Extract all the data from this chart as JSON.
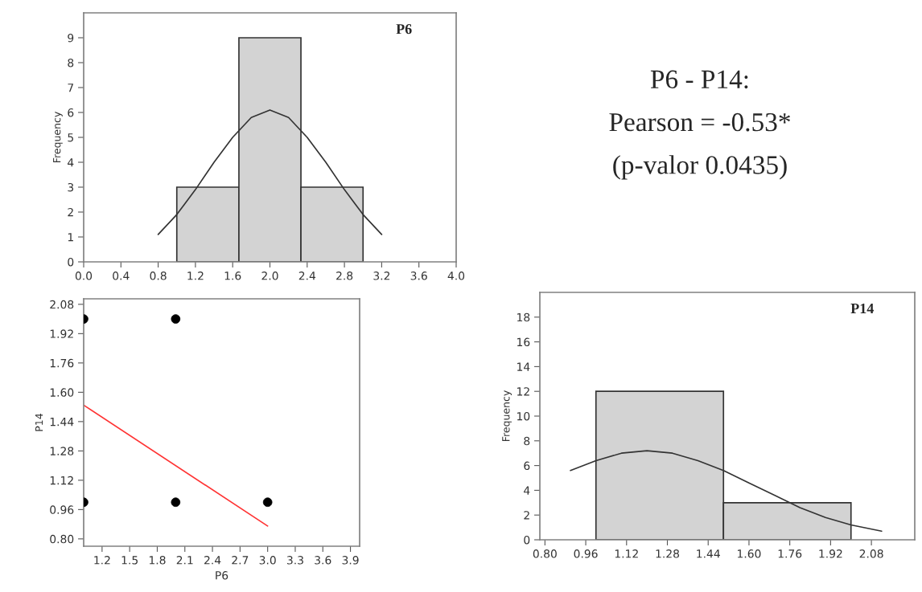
{
  "chart_data": [
    {
      "type": "histogram",
      "title": "P6",
      "ylabel": "Frequency",
      "bins": [
        1.0,
        1.667,
        2.333,
        3.0
      ],
      "values": [
        3,
        9,
        3
      ],
      "color": "#d3d3d3",
      "series": [
        {
          "type": "line",
          "color": "#333333",
          "x": [
            0.8,
            1.0,
            1.2,
            1.4,
            1.6,
            1.8,
            2.0,
            2.2,
            2.4,
            2.6,
            2.8,
            3.0,
            3.2
          ],
          "values": [
            1.1,
            1.9,
            2.9,
            4.0,
            5.0,
            5.8,
            6.1,
            5.8,
            5.0,
            4.0,
            2.9,
            1.9,
            1.1
          ]
        }
      ],
      "xlim": [
        0,
        4
      ],
      "xticks": [
        {
          "value": 0,
          "label": "0.0"
        },
        0.4,
        0.8,
        1.2,
        1.6,
        {
          "value": 2,
          "label": "2.0"
        },
        2.4,
        2.8,
        3.2,
        3.6,
        {
          "value": 4,
          "label": "4.0"
        }
      ],
      "ylim": [
        0,
        10
      ],
      "yticks": [
        0,
        1,
        2,
        3,
        4,
        5,
        6,
        7,
        8,
        9
      ],
      "grid": false
    },
    {
      "type": "other",
      "annotations": [
        "P6 - P14:",
        "Pearson = -0.53*",
        "(p-valor 0.0435)"
      ]
    },
    {
      "type": "scatter",
      "xlabel": "P6",
      "ylabel": "P14",
      "series": [
        {
          "color": "#000000",
          "marker": "circle",
          "x": [
            1,
            2,
            1,
            2,
            3
          ],
          "values": [
            2,
            2,
            1,
            1,
            1
          ]
        },
        {
          "type": "line",
          "color": "#ff3333",
          "x": [
            1.0,
            3.0
          ],
          "values": [
            1.53,
            0.87
          ]
        }
      ],
      "xlim": [
        1.0,
        4.0
      ],
      "xticks": [
        1.2,
        1.5,
        1.8,
        2.1,
        2.4,
        2.7,
        {
          "value": 3,
          "label": "3.0"
        },
        3.3,
        3.6,
        3.9
      ],
      "ylim": [
        0.76,
        2.11
      ],
      "yticks": [
        {
          "value": 0.8,
          "label": "0.80"
        },
        0.96,
        1.12,
        1.28,
        1.44,
        {
          "value": 1.6,
          "label": "1.60"
        },
        1.76,
        1.92,
        2.08
      ],
      "grid": false
    },
    {
      "type": "histogram",
      "title": "P14",
      "ylabel": "Frequency",
      "bins": [
        1.0,
        1.5,
        2.0
      ],
      "values": [
        12,
        3
      ],
      "color": "#d3d3d3",
      "series": [
        {
          "type": "line",
          "color": "#333333",
          "x": [
            0.9,
            1.0,
            1.1,
            1.2,
            1.3,
            1.4,
            1.5,
            1.6,
            1.7,
            1.8,
            1.9,
            2.0,
            2.12
          ],
          "values": [
            5.6,
            6.4,
            7.0,
            7.2,
            7.0,
            6.4,
            5.6,
            4.6,
            3.6,
            2.6,
            1.8,
            1.2,
            0.7
          ]
        }
      ],
      "xlim": [
        0.78,
        2.25
      ],
      "xticks": [
        {
          "value": 0.8,
          "label": "0.80"
        },
        0.96,
        1.12,
        1.28,
        1.44,
        {
          "value": 1.6,
          "label": "1.60"
        },
        1.76,
        1.92,
        2.08
      ],
      "ylim": [
        0,
        20
      ],
      "yticks": [
        0,
        2,
        4,
        6,
        8,
        10,
        12,
        14,
        16,
        18
      ],
      "grid": false
    }
  ]
}
